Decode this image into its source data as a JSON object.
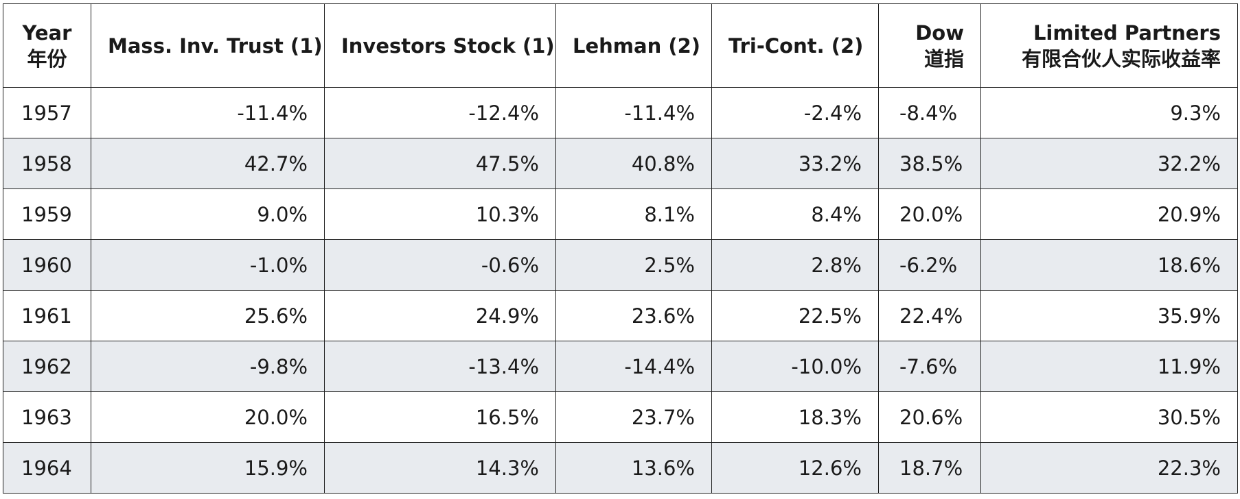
{
  "headers": [
    {
      "line1": "Year",
      "line2": "年份"
    },
    {
      "line1": "Mass. Inv. Trust (1)",
      "line2": ""
    },
    {
      "line1": "Investors Stock (1)",
      "line2": ""
    },
    {
      "line1": "Lehman (2)",
      "line2": ""
    },
    {
      "line1": "Tri-Cont. (2)",
      "line2": ""
    },
    {
      "line1": "Dow",
      "line2": "道指"
    },
    {
      "line1": "Limited Partners",
      "line2": "有限合伙人实际收益率"
    }
  ],
  "rows": [
    [
      "1957",
      "-11.4%",
      "-12.4%",
      "-11.4%",
      "-2.4%",
      "-8.4%",
      "9.3%"
    ],
    [
      "1958",
      "42.7%",
      "47.5%",
      "40.8%",
      "33.2%",
      "38.5%",
      "32.2%"
    ],
    [
      "1959",
      "9.0%",
      "10.3%",
      "8.1%",
      "8.4%",
      "20.0%",
      "20.9%"
    ],
    [
      "1960",
      "-1.0%",
      "-0.6%",
      "2.5%",
      "2.8%",
      "-6.2%",
      "18.6%"
    ],
    [
      "1961",
      "25.6%",
      "24.9%",
      "23.6%",
      "22.5%",
      "22.4%",
      "35.9%"
    ],
    [
      "1962",
      "-9.8%",
      "-13.4%",
      "-14.4%",
      "-10.0%",
      "-7.6%",
      "11.9%"
    ],
    [
      "1963",
      "20.0%",
      "16.5%",
      "23.7%",
      "18.3%",
      "20.6%",
      "30.5%"
    ],
    [
      "1964",
      "15.9%",
      "14.3%",
      "13.6%",
      "12.6%",
      "18.7%",
      "22.3%"
    ]
  ]
}
